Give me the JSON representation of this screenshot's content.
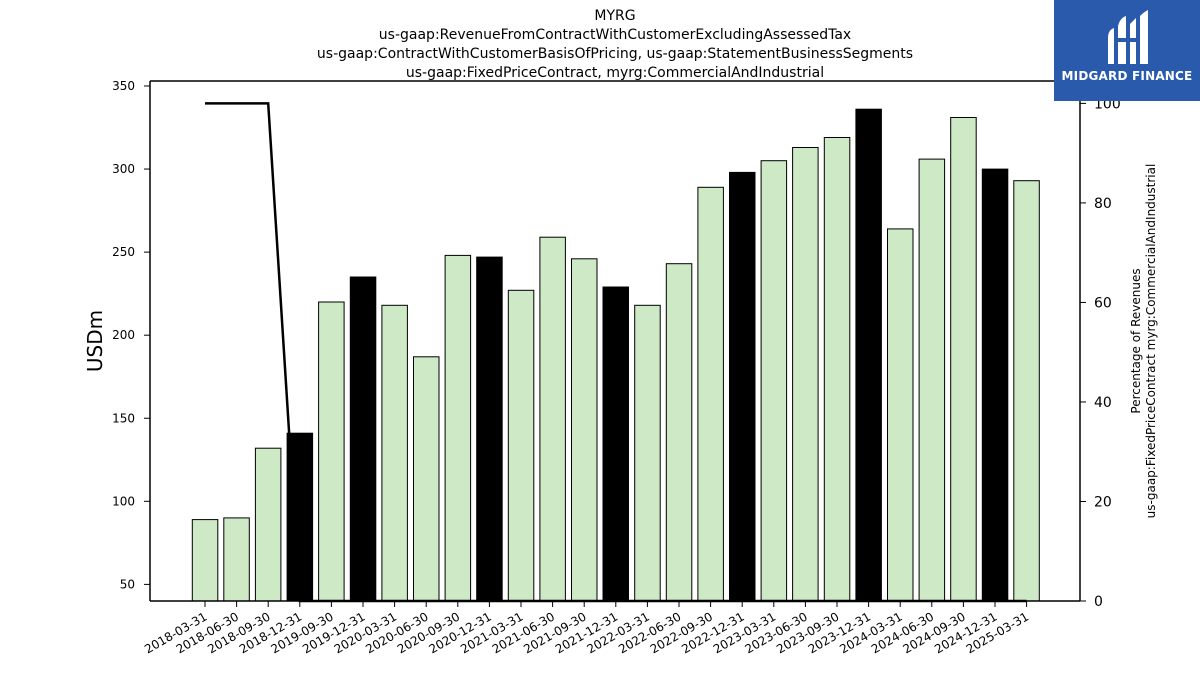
{
  "chart_data": {
    "type": "bar",
    "title_lines": [
      "MYRG",
      "us-gaap:RevenueFromContractWithCustomerExcludingAssessedTax",
      "us-gaap:ContractWithCustomerBasisOfPricing, us-gaap:StatementBusinessSegments",
      "us-gaap:FixedPriceContract, myrg:CommercialAndIndustrial"
    ],
    "ylabel": "USDm",
    "y2label_lines": [
      "Percentage of Revenues",
      "us-gaap:FixedPriceContract myrg:CommercialAndIndustrial"
    ],
    "ylim": [
      40,
      353
    ],
    "y2lim": [
      0,
      104.5
    ],
    "yticks": [
      50,
      100,
      150,
      200,
      250,
      300,
      350
    ],
    "y2ticks": [
      0,
      20,
      40,
      60,
      80,
      100
    ],
    "categories": [
      "2018-03-31",
      "2018-06-30",
      "2018-09-30",
      "2018-12-31",
      "2019-09-30",
      "2019-12-31",
      "2020-03-31",
      "2020-06-30",
      "2020-09-30",
      "2020-12-31",
      "2021-03-31",
      "2021-06-30",
      "2021-09-30",
      "2021-12-31",
      "2022-03-31",
      "2022-06-30",
      "2022-09-30",
      "2022-12-31",
      "2023-03-31",
      "2023-06-30",
      "2023-09-30",
      "2023-12-31",
      "2024-03-31",
      "2024-06-30",
      "2024-09-30",
      "2024-12-31",
      "2025-03-31"
    ],
    "series": [
      {
        "type": "bar",
        "axis": "left",
        "values": [
          89,
          90,
          132,
          141,
          220,
          235,
          218,
          187,
          248,
          247,
          227,
          259,
          246,
          229,
          218,
          243,
          289,
          298,
          305,
          313,
          319,
          336,
          264,
          306,
          331,
          300,
          293
        ],
        "highlight": [
          false,
          false,
          false,
          true,
          false,
          true,
          false,
          false,
          false,
          true,
          false,
          false,
          false,
          true,
          false,
          false,
          false,
          true,
          false,
          false,
          false,
          true,
          false,
          false,
          false,
          true,
          false
        ]
      },
      {
        "type": "line",
        "axis": "right",
        "values": [
          100,
          100,
          100,
          0,
          0,
          0,
          0,
          0,
          0,
          0,
          0,
          0,
          0,
          0,
          0,
          0,
          0,
          0,
          0,
          0,
          0,
          0,
          0,
          0,
          0,
          0,
          0
        ]
      }
    ],
    "colors": {
      "bar": "#cde9c6",
      "bar_highlight": "#000000",
      "line": "#000000"
    },
    "grid": false,
    "legend": "none"
  },
  "logo": {
    "text": "MIDGARD FINANCE",
    "icon": "midgard-logo-icon",
    "color": "#2a5aab"
  }
}
